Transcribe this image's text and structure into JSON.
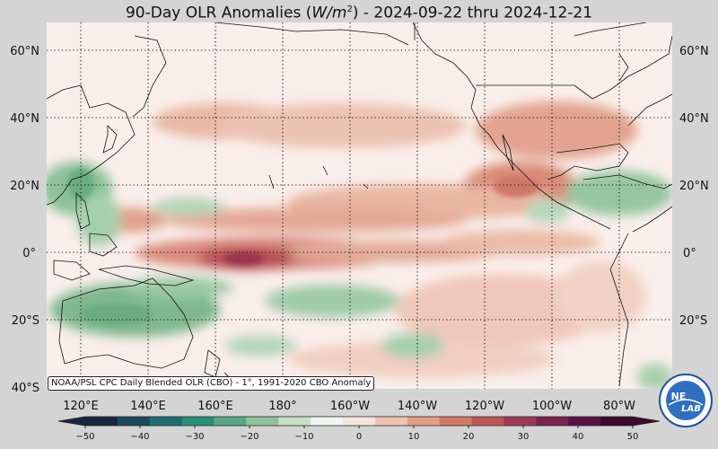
{
  "title": {
    "prefix": "90-Day OLR Anomalies (",
    "unit_base": "W/m",
    "unit_exp": "2",
    "suffix": ") - 2024-09-22 thru 2024-12-21"
  },
  "source_note": "NOAA/PSL CPC Daily Blended OLR (CBO) - 1°, 1991-2020 CBO Anomaly",
  "lat_labels": [
    "60°N",
    "40°N",
    "20°N",
    "0°",
    "20°S",
    "40°S"
  ],
  "lon_labels": [
    "120°E",
    "140°E",
    "160°E",
    "180°",
    "160°W",
    "140°W",
    "120°W",
    "100°W",
    "80°W"
  ],
  "colorbar": {
    "ticks": [
      "−50",
      "−40",
      "−30",
      "−20",
      "−10",
      "0",
      "10",
      "20",
      "30",
      "40",
      "50"
    ],
    "colors": [
      "#172640",
      "#1d4a5e",
      "#1f6e6f",
      "#2a8f78",
      "#5aa783",
      "#8fc39a",
      "#c5dfc4",
      "#f0f5ef",
      "#f5e4dc",
      "#eec3b0",
      "#e29e87",
      "#d27a68",
      "#bb5855",
      "#9e3a55",
      "#7d2250",
      "#5b1244",
      "#3a0a32"
    ]
  },
  "logo": {
    "text_top": "NE",
    "text_bottom": "LAB"
  },
  "colors": {
    "background": "#d4d4d4",
    "map_base": "#faeeea",
    "positive_anomaly": "#c9604f",
    "negative_anomaly": "#4f9a6e"
  }
}
